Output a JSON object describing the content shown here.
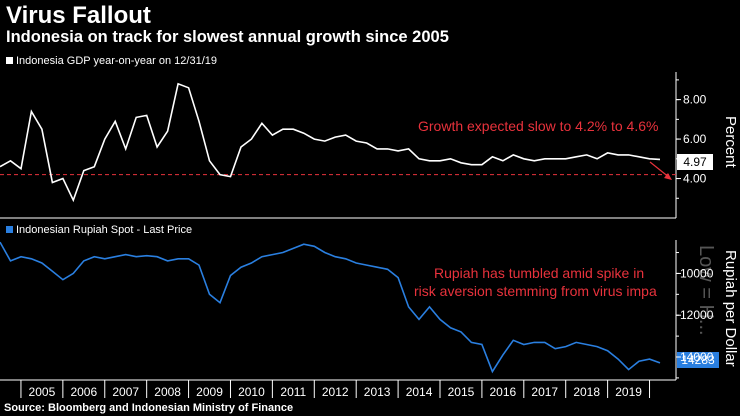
{
  "header": {
    "title": "Virus Fallout",
    "subtitle": "Indonesia on track for slowest annual growth since 2005"
  },
  "footer": {
    "source": "Source: Bloomberg and Indonesian Ministry of Finance"
  },
  "colors": {
    "gdp_line": "#ffffff",
    "rupiah_line": "#2a7fe0",
    "annotation": "#e8323c",
    "background": "#000000"
  },
  "chart_data": [
    {
      "type": "line",
      "legend": "Indonesia GDP year-on-year on 12/31/19",
      "ylabel": "Percent",
      "ylim": [
        2.0,
        9.4
      ],
      "yticks": [
        "8.00",
        "6.00",
        "4.00"
      ],
      "yticks_values": [
        8,
        6,
        4
      ],
      "last_value_label": "4.97",
      "reference_line": 4.2,
      "annotation": "Growth expected slow to 4.2% to 4.6%",
      "x_categories": [
        "2005",
        "2006",
        "2007",
        "2008",
        "2009",
        "2010",
        "2011",
        "2012",
        "2013",
        "2014",
        "2015",
        "2016",
        "2017",
        "2018",
        "2019"
      ],
      "x": [
        2004.0,
        2004.25,
        2004.5,
        2004.75,
        2005.0,
        2005.25,
        2005.5,
        2005.75,
        2006.0,
        2006.25,
        2006.5,
        2006.75,
        2007.0,
        2007.25,
        2007.5,
        2007.75,
        2008.0,
        2008.25,
        2008.5,
        2008.75,
        2009.0,
        2009.25,
        2009.5,
        2009.75,
        2010.0,
        2010.25,
        2010.5,
        2010.75,
        2011.0,
        2011.25,
        2011.5,
        2011.75,
        2012.0,
        2012.25,
        2012.5,
        2012.75,
        2013.0,
        2013.25,
        2013.5,
        2013.75,
        2014.0,
        2014.25,
        2014.5,
        2014.75,
        2015.0,
        2015.25,
        2015.5,
        2015.75,
        2016.0,
        2016.25,
        2016.5,
        2016.75,
        2017.0,
        2017.25,
        2017.5,
        2017.75,
        2018.0,
        2018.25,
        2018.5,
        2018.75,
        2019.0,
        2019.25,
        2019.5,
        2019.75
      ],
      "values": [
        4.6,
        4.9,
        4.5,
        7.4,
        6.5,
        3.8,
        4.0,
        2.9,
        4.4,
        4.6,
        6.0,
        6.9,
        5.5,
        7.1,
        7.2,
        5.6,
        6.4,
        8.8,
        8.6,
        6.9,
        4.9,
        4.2,
        4.1,
        5.6,
        6.0,
        6.8,
        6.2,
        6.5,
        6.5,
        6.3,
        6.0,
        5.9,
        6.1,
        6.2,
        5.9,
        5.8,
        5.5,
        5.5,
        5.4,
        5.5,
        5.0,
        4.9,
        4.9,
        5.0,
        4.8,
        4.7,
        4.7,
        5.1,
        4.9,
        5.2,
        5.0,
        4.9,
        5.0,
        5.0,
        5.0,
        5.1,
        5.2,
        5.0,
        5.3,
        5.2,
        5.2,
        5.1,
        5.0,
        4.97
      ]
    },
    {
      "type": "line",
      "legend": "Indonesian Rupiah Spot - Last Price",
      "ylabel": "Rupiah per Dollar",
      "y_inverted": true,
      "ylim": [
        8400,
        15100
      ],
      "yticks": [
        "10000",
        "12000",
        "14000"
      ],
      "yticks_values": [
        10000,
        12000,
        14000
      ],
      "last_value_label": "14283",
      "annotation_lines": [
        "Rupiah has tumbled amid spike in",
        "risk aversion stemming from virus impa"
      ],
      "watermark": "Low = H...",
      "x": [
        2004.0,
        2004.25,
        2004.5,
        2004.75,
        2005.0,
        2005.25,
        2005.5,
        2005.75,
        2006.0,
        2006.25,
        2006.5,
        2006.75,
        2007.0,
        2007.25,
        2007.5,
        2007.75,
        2008.0,
        2008.25,
        2008.5,
        2008.75,
        2009.0,
        2009.25,
        2009.5,
        2009.75,
        2010.0,
        2010.25,
        2010.5,
        2010.75,
        2011.0,
        2011.25,
        2011.5,
        2011.75,
        2012.0,
        2012.25,
        2012.5,
        2012.75,
        2013.0,
        2013.25,
        2013.5,
        2013.75,
        2014.0,
        2014.25,
        2014.5,
        2014.75,
        2015.0,
        2015.25,
        2015.5,
        2015.75,
        2016.0,
        2016.25,
        2016.5,
        2016.75,
        2017.0,
        2017.25,
        2017.5,
        2017.75,
        2018.0,
        2018.25,
        2018.5,
        2018.75,
        2019.0,
        2019.25,
        2019.5,
        2019.75
      ],
      "values": [
        8500,
        9400,
        9200,
        9300,
        9500,
        9900,
        10300,
        10000,
        9400,
        9200,
        9300,
        9200,
        9100,
        9200,
        9150,
        9200,
        9400,
        9300,
        9300,
        9600,
        11000,
        11400,
        10100,
        9700,
        9500,
        9200,
        9100,
        9000,
        8800,
        8600,
        8700,
        9000,
        9200,
        9300,
        9500,
        9600,
        9700,
        9800,
        10200,
        11600,
        12200,
        11600,
        12200,
        12600,
        12800,
        13300,
        13400,
        14700,
        13900,
        13200,
        13400,
        13300,
        13300,
        13600,
        13500,
        13300,
        13400,
        13500,
        13700,
        14100,
        14600,
        14200,
        14100,
        14283
      ]
    }
  ]
}
